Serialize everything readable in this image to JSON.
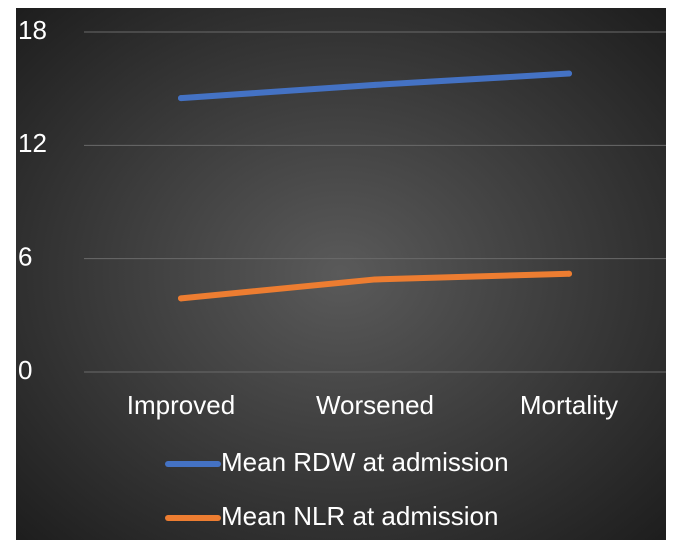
{
  "chart_data": {
    "type": "line",
    "title": "",
    "xlabel": "",
    "ylabel": "",
    "categories": [
      "Improved",
      "Worsened",
      "Mortality"
    ],
    "ylim": [
      0,
      18
    ],
    "yticks": [
      "0",
      "6",
      "12",
      "18"
    ],
    "grid": true,
    "legend_position": "bottom",
    "series": [
      {
        "name": "Mean RDW at admission",
        "values": [
          14.5,
          15.2,
          15.8
        ],
        "color": "#4472c4"
      },
      {
        "name": "Mean NLR at admission",
        "values": [
          3.9,
          4.9,
          5.2
        ],
        "color": "#ed7d31"
      }
    ],
    "background_colors": {
      "center": "#5a5a5a",
      "edge": "#1e1e1e"
    },
    "gridline_color": "#6a6a6a",
    "text_color": "#ffffff"
  }
}
